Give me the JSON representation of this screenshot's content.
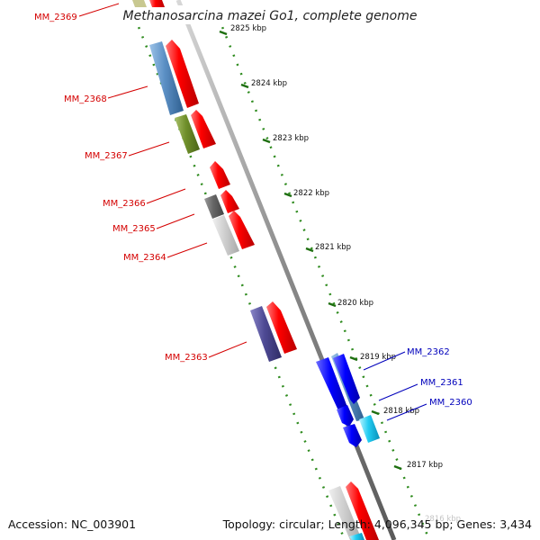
{
  "title": "Methanosarcina mazei Go1, complete genome",
  "accession": "Accession: NC_003901",
  "topology": "Topology: circular; Length: 4,096,345 bp; Genes: 3,434",
  "scale": {
    "unit": "kbp",
    "ticks": [
      "2825 kbp",
      "2824 kbp",
      "2823 kbp",
      "2822 kbp",
      "2821 kbp",
      "2820 kbp",
      "2819 kbp",
      "2818 kbp",
      "2817 kbp",
      "2816 kbp"
    ]
  },
  "colors": {
    "forward_label": "#d40000",
    "reverse_label": "#0000bb",
    "backbone": "#888888",
    "dotted_guides": "#2e8b1e"
  },
  "genes": [
    {
      "name": "MM_2369",
      "strand": "forward"
    },
    {
      "name": "MM_2368",
      "strand": "forward"
    },
    {
      "name": "MM_2367",
      "strand": "forward"
    },
    {
      "name": "MM_2366",
      "strand": "forward"
    },
    {
      "name": "MM_2365",
      "strand": "forward"
    },
    {
      "name": "MM_2364",
      "strand": "forward"
    },
    {
      "name": "MM_2363",
      "strand": "forward"
    },
    {
      "name": "MM_2362",
      "strand": "reverse"
    },
    {
      "name": "MM_2361",
      "strand": "reverse"
    },
    {
      "name": "MM_2360",
      "strand": "reverse"
    }
  ]
}
